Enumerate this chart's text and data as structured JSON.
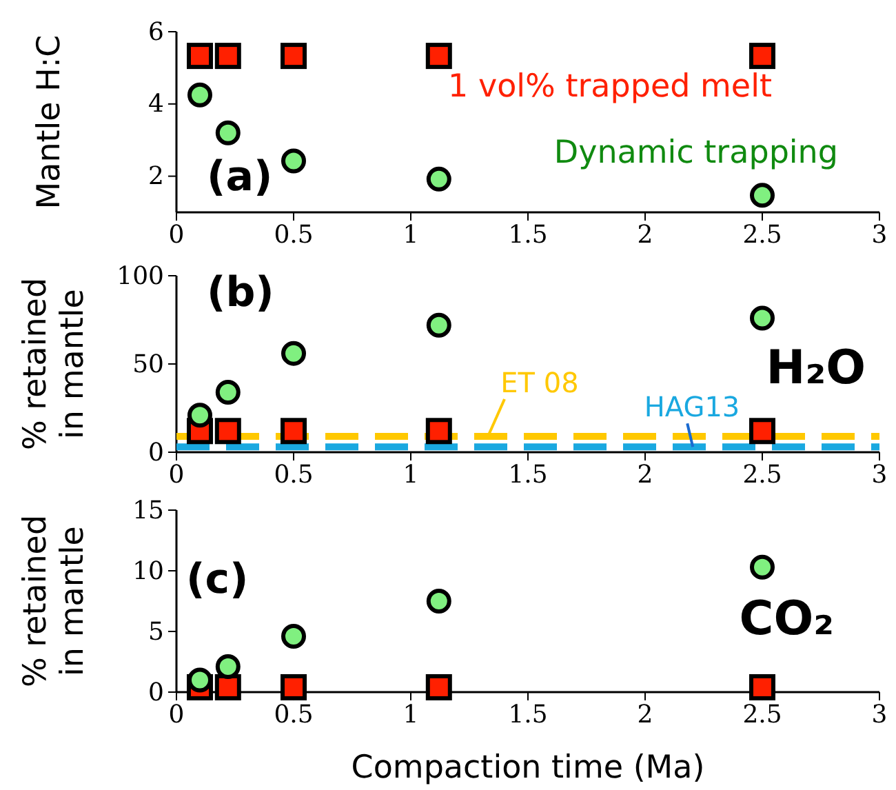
{
  "chart_data": [
    {
      "type": "scatter",
      "ylabel": "Mantle H:C",
      "x": [
        0.1,
        0.22,
        0.5,
        1.12,
        2.5
      ],
      "xlim": [
        0,
        3
      ],
      "xticks": [
        0,
        0.5,
        1,
        1.5,
        2,
        2.5,
        3
      ],
      "ylim": [
        1,
        6
      ],
      "yticks": [
        2,
        4,
        6
      ],
      "grid": false,
      "series": [
        {
          "name": "1 vol% trapped melt",
          "color": "#ff2000",
          "marker": "square",
          "values": [
            5.33,
            5.33,
            5.33,
            5.33,
            5.33
          ]
        },
        {
          "name": "Dynamic trapping",
          "color": "#80f080",
          "marker": "circle",
          "values": [
            4.25,
            3.2,
            2.42,
            1.92,
            1.47
          ]
        }
      ],
      "annotations": [
        "(a)"
      ]
    },
    {
      "type": "scatter",
      "ylabel": "% retained\nin mantle",
      "x": [
        0.1,
        0.22,
        0.5,
        1.12,
        2.5
      ],
      "xlim": [
        0,
        3
      ],
      "xticks": [
        0,
        0.5,
        1,
        1.5,
        2,
        2.5,
        3
      ],
      "ylim": [
        0,
        100
      ],
      "yticks": [
        0,
        50,
        100
      ],
      "grid": false,
      "series": [
        {
          "color": "#ff2000",
          "marker": "square",
          "values": [
            12,
            12,
            12,
            12,
            12
          ]
        },
        {
          "color": "#80f080",
          "marker": "circle",
          "values": [
            21,
            34,
            56,
            72,
            76
          ]
        }
      ],
      "ref_lines": [
        {
          "axis": "y",
          "value": 9,
          "label": "ET 08",
          "color": "#ffc800",
          "line_style": "dashed"
        },
        {
          "axis": "y",
          "value": 3,
          "label": "HAG13",
          "color": "#1aa8e0",
          "line_style": "dashed"
        }
      ],
      "annotations": [
        "(b)",
        "H₂O"
      ]
    },
    {
      "type": "scatter",
      "ylabel": "% retained\nin mantle",
      "xlabel": "Compaction time (Ma)",
      "x": [
        0.1,
        0.22,
        0.5,
        1.12,
        2.5
      ],
      "xlim": [
        0,
        3
      ],
      "xticks": [
        0,
        0.5,
        1,
        1.5,
        2,
        2.5,
        3
      ],
      "ylim": [
        0,
        15
      ],
      "yticks": [
        0,
        5,
        10,
        15
      ],
      "grid": false,
      "series": [
        {
          "color": "#ff2000",
          "marker": "square",
          "values": [
            0.4,
            0.4,
            0.4,
            0.4,
            0.4
          ]
        },
        {
          "color": "#80f080",
          "marker": "circle",
          "values": [
            1.0,
            2.1,
            4.6,
            7.5,
            10.3
          ]
        }
      ],
      "annotations": [
        "(c)",
        "CO₂"
      ]
    }
  ]
}
